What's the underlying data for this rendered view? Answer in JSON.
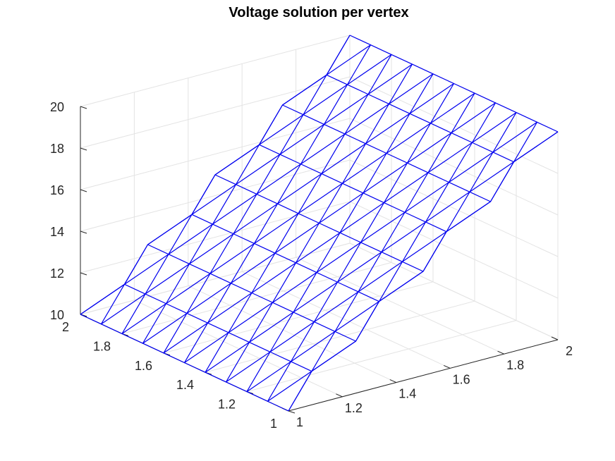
{
  "chart_data": {
    "type": "surface-mesh",
    "title": "Voltage solution per vertex",
    "xlabel": "",
    "ylabel": "",
    "zlabel": "",
    "xlim": [
      1,
      2
    ],
    "ylim": [
      1,
      2
    ],
    "zlim": [
      10,
      20
    ],
    "x_ticks": [
      "1",
      "1.2",
      "1.4",
      "1.6",
      "1.8",
      "2"
    ],
    "y_ticks": [
      "1",
      "1.2",
      "1.4",
      "1.6",
      "1.8",
      "2"
    ],
    "z_ticks": [
      "10",
      "12",
      "14",
      "16",
      "18",
      "20"
    ],
    "grid": true,
    "mesh_color": "#0000ee",
    "grid_color": "#e3e3e3",
    "rows": [
      {
        "x": 1.0,
        "y": [
          1.0,
          1.1,
          1.2,
          1.3,
          1.4,
          1.5,
          1.6,
          1.7,
          1.8,
          1.9,
          2.0
        ]
      },
      {
        "x": 1.125,
        "y": [
          1.05,
          1.15,
          1.25,
          1.35,
          1.45,
          1.55,
          1.65,
          1.75,
          1.85,
          1.95
        ]
      },
      {
        "x": 1.25,
        "y": [
          1.0,
          1.1,
          1.2,
          1.3,
          1.4,
          1.5,
          1.6,
          1.7,
          1.8,
          1.9,
          2.0
        ]
      },
      {
        "x": 1.375,
        "y": [
          1.05,
          1.15,
          1.25,
          1.35,
          1.45,
          1.55,
          1.65,
          1.75,
          1.85,
          1.95
        ]
      },
      {
        "x": 1.5,
        "y": [
          1.0,
          1.1,
          1.2,
          1.3,
          1.4,
          1.5,
          1.6,
          1.7,
          1.8,
          1.9,
          2.0
        ]
      },
      {
        "x": 1.625,
        "y": [
          1.05,
          1.15,
          1.25,
          1.35,
          1.45,
          1.55,
          1.65,
          1.75,
          1.85,
          1.95
        ]
      },
      {
        "x": 1.75,
        "y": [
          1.0,
          1.1,
          1.2,
          1.3,
          1.4,
          1.5,
          1.6,
          1.7,
          1.8,
          1.9,
          2.0
        ]
      },
      {
        "x": 1.875,
        "y": [
          1.05,
          1.15,
          1.25,
          1.35,
          1.45,
          1.55,
          1.65,
          1.75,
          1.85,
          1.95
        ]
      },
      {
        "x": 2.0,
        "y": [
          1.0,
          1.1,
          1.2,
          1.3,
          1.4,
          1.5,
          1.6,
          1.7,
          1.8,
          1.9,
          2.0
        ]
      }
    ],
    "z_at_x": [
      [
        1.0,
        10.0
      ],
      [
        2.0,
        20.0
      ]
    ]
  }
}
